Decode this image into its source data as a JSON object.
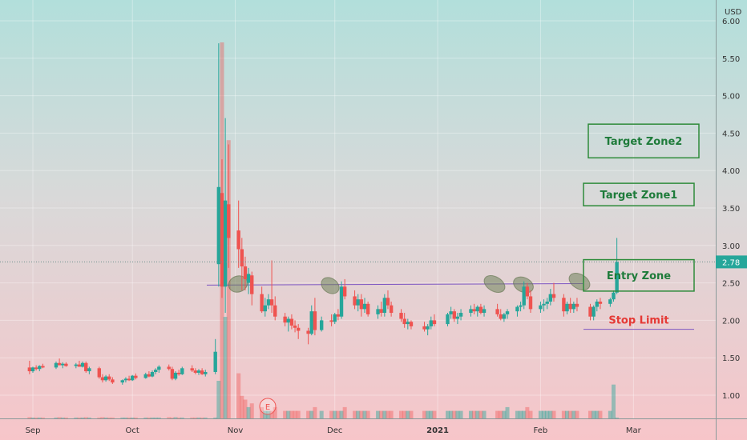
{
  "chart_data": {
    "type": "candlestick",
    "currency": "USD",
    "y_ticks": [
      "6.00",
      "5.50",
      "5.00",
      "4.50",
      "4.00",
      "3.50",
      "3.00",
      "2.50",
      "2.00",
      "1.50",
      "1.00"
    ],
    "ylim": [
      0.7,
      6.1
    ],
    "x_ticks": [
      "Sep",
      "Oct",
      "Nov",
      "Dec",
      "2021",
      "Feb",
      "Mar"
    ],
    "last_price": "2.78",
    "annotations": {
      "target_zone2": "Target Zone2",
      "target_zone1": "Target Zone1",
      "entry_zone": "Entry Zone",
      "stop_limit": "Stop Limit",
      "earnings_marker": "E"
    },
    "zones": {
      "target_zone2": [
        4.17,
        4.62
      ],
      "target_zone1": [
        3.53,
        3.83
      ],
      "entry_zone": [
        2.39,
        2.81
      ],
      "stop_limit": 1.88,
      "resistance_line": [
        2.47,
        2.49
      ]
    },
    "colors": {
      "up": "#26a69a",
      "down": "#ef5350",
      "zone_border": "#2e8b3a",
      "zone_text": "#1e7b3a",
      "stop_text": "#e53935",
      "line": "#7e57c2",
      "price_tag": "#26a69a"
    },
    "ohlc": [
      {
        "date": "2020-08-31",
        "o": 1.37,
        "h": 1.46,
        "l": 1.28,
        "c": 1.32
      },
      {
        "date": "2020-09-01",
        "o": 1.32,
        "h": 1.38,
        "l": 1.3,
        "c": 1.37
      },
      {
        "date": "2020-09-02",
        "o": 1.37,
        "h": 1.4,
        "l": 1.33,
        "c": 1.35
      },
      {
        "date": "2020-09-03",
        "o": 1.35,
        "h": 1.4,
        "l": 1.32,
        "c": 1.39
      },
      {
        "date": "2020-09-04",
        "o": 1.39,
        "h": 1.42,
        "l": 1.36,
        "c": 1.37
      },
      {
        "date": "2020-09-08",
        "o": 1.37,
        "h": 1.45,
        "l": 1.35,
        "c": 1.43
      },
      {
        "date": "2020-09-09",
        "o": 1.43,
        "h": 1.49,
        "l": 1.4,
        "c": 1.4
      },
      {
        "date": "2020-09-10",
        "o": 1.4,
        "h": 1.44,
        "l": 1.36,
        "c": 1.42
      },
      {
        "date": "2020-09-11",
        "o": 1.42,
        "h": 1.44,
        "l": 1.38,
        "c": 1.39
      },
      {
        "date": "2020-09-14",
        "o": 1.39,
        "h": 1.43,
        "l": 1.36,
        "c": 1.41
      },
      {
        "date": "2020-09-15",
        "o": 1.41,
        "h": 1.46,
        "l": 1.38,
        "c": 1.38
      },
      {
        "date": "2020-09-16",
        "o": 1.38,
        "h": 1.45,
        "l": 1.37,
        "c": 1.43
      },
      {
        "date": "2020-09-17",
        "o": 1.43,
        "h": 1.45,
        "l": 1.3,
        "c": 1.32
      },
      {
        "date": "2020-09-18",
        "o": 1.32,
        "h": 1.38,
        "l": 1.28,
        "c": 1.36
      },
      {
        "date": "2020-09-21",
        "o": 1.36,
        "h": 1.38,
        "l": 1.22,
        "c": 1.24
      },
      {
        "date": "2020-09-22",
        "o": 1.24,
        "h": 1.28,
        "l": 1.17,
        "c": 1.2
      },
      {
        "date": "2020-09-23",
        "o": 1.2,
        "h": 1.27,
        "l": 1.18,
        "c": 1.25
      },
      {
        "date": "2020-09-24",
        "o": 1.25,
        "h": 1.28,
        "l": 1.19,
        "c": 1.21
      },
      {
        "date": "2020-09-25",
        "o": 1.21,
        "h": 1.24,
        "l": 1.15,
        "c": 1.17
      },
      {
        "date": "2020-09-28",
        "o": 1.17,
        "h": 1.21,
        "l": 1.14,
        "c": 1.2
      },
      {
        "date": "2020-09-29",
        "o": 1.2,
        "h": 1.24,
        "l": 1.17,
        "c": 1.22
      },
      {
        "date": "2020-09-30",
        "o": 1.22,
        "h": 1.26,
        "l": 1.19,
        "c": 1.2
      },
      {
        "date": "2020-10-01",
        "o": 1.2,
        "h": 1.27,
        "l": 1.19,
        "c": 1.26
      },
      {
        "date": "2020-10-02",
        "o": 1.26,
        "h": 1.29,
        "l": 1.21,
        "c": 1.23
      },
      {
        "date": "2020-10-05",
        "o": 1.23,
        "h": 1.3,
        "l": 1.22,
        "c": 1.28
      },
      {
        "date": "2020-10-06",
        "o": 1.28,
        "h": 1.32,
        "l": 1.24,
        "c": 1.25
      },
      {
        "date": "2020-10-07",
        "o": 1.25,
        "h": 1.33,
        "l": 1.24,
        "c": 1.31
      },
      {
        "date": "2020-10-08",
        "o": 1.31,
        "h": 1.36,
        "l": 1.28,
        "c": 1.34
      },
      {
        "date": "2020-10-09",
        "o": 1.34,
        "h": 1.4,
        "l": 1.3,
        "c": 1.38
      },
      {
        "date": "2020-10-12",
        "o": 1.38,
        "h": 1.41,
        "l": 1.33,
        "c": 1.35
      },
      {
        "date": "2020-10-13",
        "o": 1.35,
        "h": 1.38,
        "l": 1.2,
        "c": 1.22
      },
      {
        "date": "2020-10-14",
        "o": 1.22,
        "h": 1.32,
        "l": 1.2,
        "c": 1.3
      },
      {
        "date": "2020-10-15",
        "o": 1.3,
        "h": 1.34,
        "l": 1.26,
        "c": 1.28
      },
      {
        "date": "2020-10-16",
        "o": 1.28,
        "h": 1.38,
        "l": 1.27,
        "c": 1.36
      },
      {
        "date": "2020-10-19",
        "o": 1.36,
        "h": 1.4,
        "l": 1.31,
        "c": 1.33
      },
      {
        "date": "2020-10-20",
        "o": 1.33,
        "h": 1.36,
        "l": 1.28,
        "c": 1.3
      },
      {
        "date": "2020-10-21",
        "o": 1.3,
        "h": 1.35,
        "l": 1.27,
        "c": 1.33
      },
      {
        "date": "2020-10-22",
        "o": 1.33,
        "h": 1.36,
        "l": 1.27,
        "c": 1.28
      },
      {
        "date": "2020-10-23",
        "o": 1.28,
        "h": 1.34,
        "l": 1.25,
        "c": 1.31
      },
      {
        "date": "2020-10-26",
        "o": 1.31,
        "h": 1.75,
        "l": 1.28,
        "c": 1.58
      },
      {
        "date": "2020-10-27",
        "o": 2.75,
        "h": 5.7,
        "l": 2.45,
        "c": 3.78
      },
      {
        "date": "2020-10-28",
        "o": 3.7,
        "h": 4.15,
        "l": 2.3,
        "c": 2.45
      },
      {
        "date": "2020-10-29",
        "o": 2.45,
        "h": 4.7,
        "l": 2.1,
        "c": 3.6
      },
      {
        "date": "2020-10-30",
        "o": 3.55,
        "h": 4.35,
        "l": 2.7,
        "c": 3.1
      },
      {
        "date": "2020-11-02",
        "o": 3.2,
        "h": 3.6,
        "l": 2.7,
        "c": 2.95
      },
      {
        "date": "2020-11-03",
        "o": 2.95,
        "h": 3.1,
        "l": 2.4,
        "c": 2.72
      },
      {
        "date": "2020-11-04",
        "o": 2.72,
        "h": 2.85,
        "l": 2.4,
        "c": 2.55
      },
      {
        "date": "2020-11-05",
        "o": 2.5,
        "h": 2.7,
        "l": 2.35,
        "c": 2.62
      },
      {
        "date": "2020-11-06",
        "o": 2.6,
        "h": 2.65,
        "l": 2.2,
        "c": 2.35
      },
      {
        "date": "2020-11-09",
        "o": 2.35,
        "h": 2.45,
        "l": 2.1,
        "c": 2.12
      },
      {
        "date": "2020-11-10",
        "o": 2.12,
        "h": 2.3,
        "l": 2.05,
        "c": 2.2
      },
      {
        "date": "2020-11-11",
        "o": 2.2,
        "h": 2.35,
        "l": 2.15,
        "c": 2.28
      },
      {
        "date": "2020-11-12",
        "o": 2.28,
        "h": 2.8,
        "l": 2.1,
        "c": 2.2
      },
      {
        "date": "2020-11-13",
        "o": 2.2,
        "h": 2.32,
        "l": 2.0,
        "c": 2.05
      },
      {
        "date": "2020-11-16",
        "o": 2.05,
        "h": 2.1,
        "l": 1.92,
        "c": 1.97
      },
      {
        "date": "2020-11-17",
        "o": 1.97,
        "h": 2.05,
        "l": 1.85,
        "c": 2.02
      },
      {
        "date": "2020-11-18",
        "o": 2.02,
        "h": 2.08,
        "l": 1.88,
        "c": 1.93
      },
      {
        "date": "2020-11-19",
        "o": 1.93,
        "h": 2.0,
        "l": 1.84,
        "c": 1.9
      },
      {
        "date": "2020-11-20",
        "o": 1.9,
        "h": 1.95,
        "l": 1.75,
        "c": 1.86
      },
      {
        "date": "2020-11-23",
        "o": 1.86,
        "h": 1.9,
        "l": 1.68,
        "c": 1.82
      },
      {
        "date": "2020-11-24",
        "o": 1.82,
        "h": 2.2,
        "l": 1.8,
        "c": 2.12
      },
      {
        "date": "2020-11-25",
        "o": 2.12,
        "h": 2.3,
        "l": 1.8,
        "c": 1.87
      },
      {
        "date": "2020-11-27",
        "o": 1.87,
        "h": 2.05,
        "l": 1.85,
        "c": 2.0
      },
      {
        "date": "2020-11-30",
        "o": 2.0,
        "h": 2.08,
        "l": 1.92,
        "c": 1.98
      },
      {
        "date": "2020-12-01",
        "o": 1.98,
        "h": 2.1,
        "l": 1.95,
        "c": 2.08
      },
      {
        "date": "2020-12-02",
        "o": 2.08,
        "h": 2.15,
        "l": 2.0,
        "c": 2.05
      },
      {
        "date": "2020-12-03",
        "o": 2.05,
        "h": 2.52,
        "l": 2.02,
        "c": 2.45
      },
      {
        "date": "2020-12-04",
        "o": 2.45,
        "h": 2.55,
        "l": 2.28,
        "c": 2.32
      },
      {
        "date": "2020-12-07",
        "o": 2.32,
        "h": 2.4,
        "l": 2.15,
        "c": 2.2
      },
      {
        "date": "2020-12-08",
        "o": 2.2,
        "h": 2.35,
        "l": 2.12,
        "c": 2.28
      },
      {
        "date": "2020-12-09",
        "o": 2.28,
        "h": 2.35,
        "l": 2.05,
        "c": 2.15
      },
      {
        "date": "2020-12-10",
        "o": 2.15,
        "h": 2.3,
        "l": 2.1,
        "c": 2.22
      },
      {
        "date": "2020-12-11",
        "o": 2.22,
        "h": 2.25,
        "l": 2.05,
        "c": 2.08
      },
      {
        "date": "2020-12-14",
        "o": 2.08,
        "h": 2.2,
        "l": 2.02,
        "c": 2.15
      },
      {
        "date": "2020-12-15",
        "o": 2.15,
        "h": 2.25,
        "l": 2.05,
        "c": 2.1
      },
      {
        "date": "2020-12-16",
        "o": 2.1,
        "h": 2.35,
        "l": 2.05,
        "c": 2.3
      },
      {
        "date": "2020-12-17",
        "o": 2.3,
        "h": 2.4,
        "l": 2.15,
        "c": 2.2
      },
      {
        "date": "2020-12-18",
        "o": 2.2,
        "h": 2.25,
        "l": 2.05,
        "c": 2.1
      },
      {
        "date": "2020-12-21",
        "o": 2.1,
        "h": 2.15,
        "l": 1.98,
        "c": 2.02
      },
      {
        "date": "2020-12-22",
        "o": 2.02,
        "h": 2.1,
        "l": 1.9,
        "c": 1.95
      },
      {
        "date": "2020-12-23",
        "o": 1.95,
        "h": 2.02,
        "l": 1.88,
        "c": 1.98
      },
      {
        "date": "2020-12-24",
        "o": 1.98,
        "h": 2.0,
        "l": 1.88,
        "c": 1.92
      },
      {
        "date": "2020-12-28",
        "o": 1.92,
        "h": 1.98,
        "l": 1.85,
        "c": 1.88
      },
      {
        "date": "2020-12-29",
        "o": 1.88,
        "h": 1.95,
        "l": 1.8,
        "c": 1.92
      },
      {
        "date": "2020-12-30",
        "o": 1.92,
        "h": 2.05,
        "l": 1.88,
        "c": 2.0
      },
      {
        "date": "2020-12-31",
        "o": 2.0,
        "h": 2.08,
        "l": 1.92,
        "c": 1.95
      },
      {
        "date": "2021-01-04",
        "o": 1.95,
        "h": 2.1,
        "l": 1.92,
        "c": 2.08
      },
      {
        "date": "2021-01-05",
        "o": 2.08,
        "h": 2.18,
        "l": 2.02,
        "c": 2.12
      },
      {
        "date": "2021-01-06",
        "o": 2.12,
        "h": 2.15,
        "l": 1.98,
        "c": 2.02
      },
      {
        "date": "2021-01-07",
        "o": 2.02,
        "h": 2.1,
        "l": 1.95,
        "c": 2.05
      },
      {
        "date": "2021-01-08",
        "o": 2.05,
        "h": 2.15,
        "l": 2.0,
        "c": 2.1
      },
      {
        "date": "2021-01-11",
        "o": 2.1,
        "h": 2.2,
        "l": 2.05,
        "c": 2.15
      },
      {
        "date": "2021-01-12",
        "o": 2.15,
        "h": 2.22,
        "l": 2.08,
        "c": 2.12
      },
      {
        "date": "2021-01-13",
        "o": 2.12,
        "h": 2.2,
        "l": 2.05,
        "c": 2.18
      },
      {
        "date": "2021-01-14",
        "o": 2.18,
        "h": 2.22,
        "l": 2.08,
        "c": 2.1
      },
      {
        "date": "2021-01-15",
        "o": 2.1,
        "h": 2.2,
        "l": 2.05,
        "c": 2.15
      },
      {
        "date": "2021-01-19",
        "o": 2.15,
        "h": 2.22,
        "l": 2.05,
        "c": 2.08
      },
      {
        "date": "2021-01-20",
        "o": 2.08,
        "h": 2.15,
        "l": 2.0,
        "c": 2.02
      },
      {
        "date": "2021-01-21",
        "o": 2.02,
        "h": 2.1,
        "l": 1.98,
        "c": 2.08
      },
      {
        "date": "2021-01-22",
        "o": 2.08,
        "h": 2.15,
        "l": 2.02,
        "c": 2.12
      },
      {
        "date": "2021-01-25",
        "o": 2.12,
        "h": 2.2,
        "l": 2.05,
        "c": 2.18
      },
      {
        "date": "2021-01-26",
        "o": 2.18,
        "h": 2.25,
        "l": 2.12,
        "c": 2.2
      },
      {
        "date": "2021-01-27",
        "o": 2.2,
        "h": 2.52,
        "l": 2.15,
        "c": 2.45
      },
      {
        "date": "2021-01-28",
        "o": 2.45,
        "h": 2.5,
        "l": 2.28,
        "c": 2.32
      },
      {
        "date": "2021-01-29",
        "o": 2.32,
        "h": 2.4,
        "l": 2.1,
        "c": 2.15
      },
      {
        "date": "2021-02-01",
        "o": 2.15,
        "h": 2.25,
        "l": 2.1,
        "c": 2.2
      },
      {
        "date": "2021-02-02",
        "o": 2.2,
        "h": 2.28,
        "l": 2.12,
        "c": 2.22
      },
      {
        "date": "2021-02-03",
        "o": 2.22,
        "h": 2.3,
        "l": 2.15,
        "c": 2.25
      },
      {
        "date": "2021-02-04",
        "o": 2.25,
        "h": 2.42,
        "l": 2.2,
        "c": 2.35
      },
      {
        "date": "2021-02-05",
        "o": 2.35,
        "h": 2.5,
        "l": 2.25,
        "c": 2.3
      },
      {
        "date": "2021-02-08",
        "o": 2.3,
        "h": 2.35,
        "l": 2.05,
        "c": 2.12
      },
      {
        "date": "2021-02-09",
        "o": 2.12,
        "h": 2.25,
        "l": 2.08,
        "c": 2.22
      },
      {
        "date": "2021-02-10",
        "o": 2.22,
        "h": 2.3,
        "l": 2.1,
        "c": 2.15
      },
      {
        "date": "2021-02-11",
        "o": 2.15,
        "h": 2.25,
        "l": 2.1,
        "c": 2.22
      },
      {
        "date": "2021-02-12",
        "o": 2.22,
        "h": 2.3,
        "l": 2.12,
        "c": 2.18
      },
      {
        "date": "2021-02-16",
        "o": 2.18,
        "h": 2.22,
        "l": 2.0,
        "c": 2.05
      },
      {
        "date": "2021-02-17",
        "o": 2.05,
        "h": 2.2,
        "l": 2.0,
        "c": 2.18
      },
      {
        "date": "2021-02-18",
        "o": 2.18,
        "h": 2.28,
        "l": 2.12,
        "c": 2.25
      },
      {
        "date": "2021-02-19",
        "o": 2.25,
        "h": 2.3,
        "l": 2.15,
        "c": 2.22
      },
      {
        "date": "2021-02-22",
        "o": 2.22,
        "h": 2.3,
        "l": 2.18,
        "c": 2.28
      },
      {
        "date": "2021-02-23",
        "o": 2.28,
        "h": 2.4,
        "l": 2.25,
        "c": 2.37
      },
      {
        "date": "2021-02-24",
        "o": 2.37,
        "h": 3.1,
        "l": 2.35,
        "c": 2.78
      }
    ],
    "volume": [
      0.003,
      0.002,
      0.002,
      0.002,
      0.002,
      0.002,
      0.003,
      0.002,
      0.002,
      0.002,
      0.002,
      0.002,
      0.003,
      0.002,
      0.002,
      0.003,
      0.002,
      0.002,
      0.002,
      0.002,
      0.002,
      0.002,
      0.002,
      0.002,
      0.002,
      0.002,
      0.002,
      0.002,
      0.002,
      0.003,
      0.002,
      0.003,
      0.002,
      0.002,
      0.002,
      0.002,
      0.002,
      0.002,
      0.002,
      0.002,
      0.1,
      1.0,
      0.27,
      0.74,
      0.12,
      0.06,
      0.05,
      0.03,
      0.04,
      0.03,
      0.02,
      0.02,
      0.02,
      0.03,
      0.02,
      0.02,
      0.02,
      0.02,
      0.02,
      0.02,
      0.02,
      0.03,
      0.02,
      0.02,
      0.02,
      0.02,
      0.02,
      0.03,
      0.02,
      0.02,
      0.02,
      0.02,
      0.02,
      0.02,
      0.02,
      0.02,
      0.02,
      0.02,
      0.02,
      0.02,
      0.02,
      0.02,
      0.02,
      0.02,
      0.02,
      0.02,
      0.02,
      0.02,
      0.02,
      0.02,
      0.02,
      0.02,
      0.02,
      0.02,
      0.02,
      0.02,
      0.02,
      0.02,
      0.02,
      0.03,
      0.02,
      0.02,
      0.02,
      0.03,
      0.02,
      0.02,
      0.02,
      0.02,
      0.02,
      0.02,
      0.02,
      0.02,
      0.02,
      0.02,
      0.02,
      0.02,
      0.02,
      0.02,
      0.02,
      0.02,
      0.09
    ]
  }
}
